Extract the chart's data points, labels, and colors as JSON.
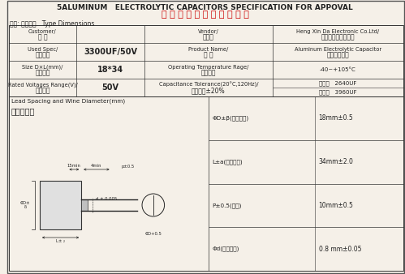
{
  "title_en": "5ALUMINUM   ELECTROLYTIC CAPACITORS SPECIFICATION FOR APPOVAL",
  "title_cn": "铝 电 解 电 容 器 规 格 承 认 书",
  "subtitle": "表一: 承认项目   Type Dimensions",
  "bg_color": "#f5f0e8",
  "table1": [
    [
      "Customer/\n客 户",
      "",
      "Vendor/\n供应商",
      "Heng Xin Da Electronic Co.Ltd/\n恒新达电子有限公司"
    ],
    [
      "Used Spec/\n通用规格",
      "3300UF/50V",
      "Product Name/\n品 名",
      "Aluminum Electrolytic Capacitor\n铝电解电容器"
    ],
    [
      "Size D×L(mm)/\n外型尺寸",
      "18*34",
      "Operating Temperature Rage/\n使用温度",
      "-40~+105°C"
    ],
    [
      "Rated Voltages Range(V)/\n额定电压",
      "50V",
      "Capacitance Tolerance(20°C,120Hz)/\n容量范围±20%",
      "下限：   2640UF\n上限：   3960UF"
    ]
  ],
  "table2_title_left": "Lead Spacing and Wine Diameter(mm)\n型状及尺寸",
  "table2_rows": [
    [
      "ΦD±β(电容直径)",
      "18mm±0.5"
    ],
    [
      "L±a(电容高度)",
      "34mm±2.0"
    ],
    [
      "P±0.5(脚距)",
      "10mm±0.5"
    ],
    [
      "Φd(引线直径)",
      "0.8 mm±0.05"
    ]
  ],
  "border_color": "#333333",
  "text_color": "#222222",
  "red_color": "#cc0000",
  "light_row": "#ffffff",
  "header_bg": "#f0ece0"
}
